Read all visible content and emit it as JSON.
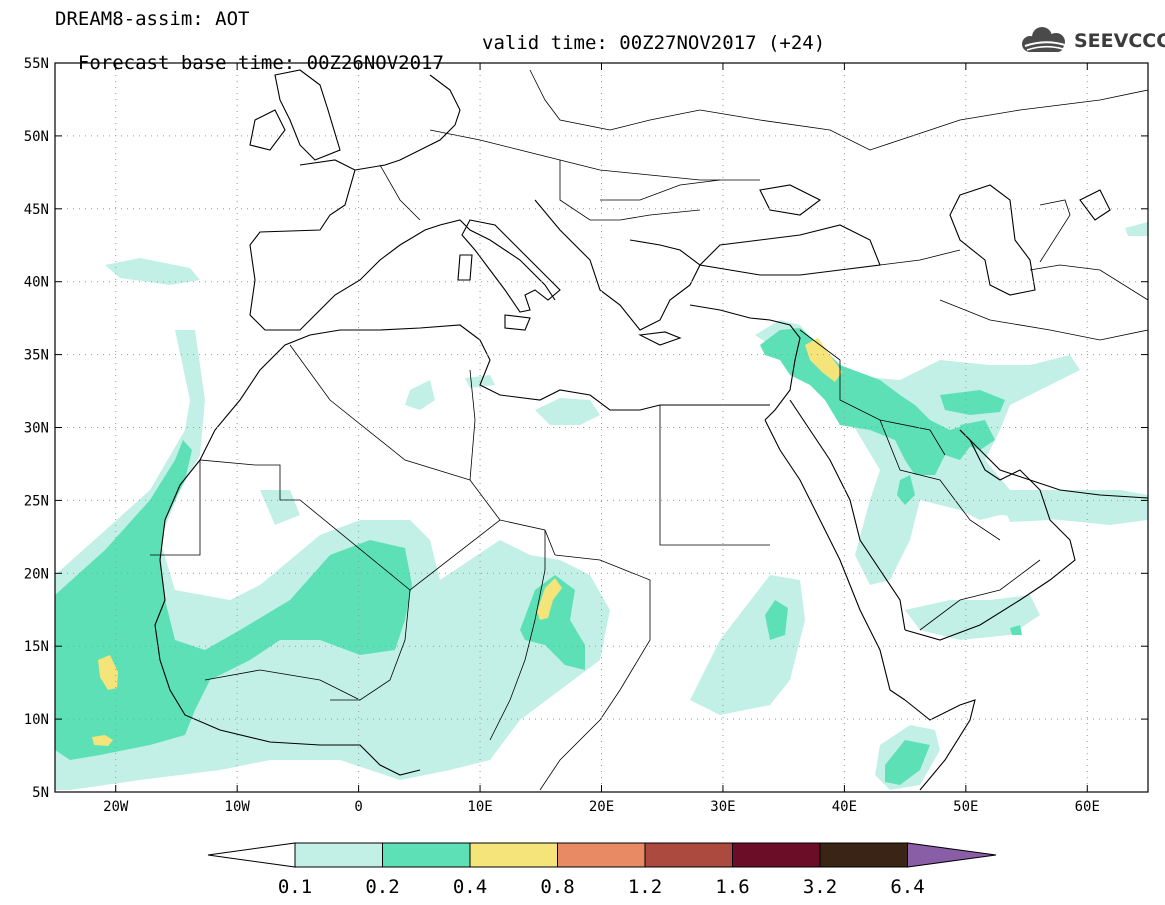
{
  "title": {
    "line1": "DREAM8-assim: AOT",
    "base_time": "Forecast base time: 00Z26NOV2017",
    "valid_time": "valid time: 00Z27NOV2017 (+24)"
  },
  "logo": {
    "text": "SEEVCCC",
    "icon": "cloud-icon"
  },
  "map": {
    "lon_range": [
      -25,
      65
    ],
    "lat_range": [
      5,
      55
    ],
    "lat_ticks": [
      "5N",
      "10N",
      "15N",
      "20N",
      "25N",
      "30N",
      "35N",
      "40N",
      "45N",
      "50N",
      "55N"
    ],
    "lon_ticks": [
      "20W",
      "10W",
      "0",
      "10E",
      "20E",
      "30E",
      "40E",
      "50E",
      "60E"
    ]
  },
  "colorbar": {
    "levels": [
      "0.1",
      "0.2",
      "0.4",
      "0.8",
      "1.2",
      "1.6",
      "3.2",
      "6.4"
    ],
    "colors": {
      "below": "#ffffff",
      "c1": "#c2f0e6",
      "c2": "#5ee0b6",
      "c3": "#f4e47a",
      "c4": "#e88a63",
      "c5": "#ad4a3f",
      "c6": "#6b0d26",
      "c7": "#3a2415",
      "above": "#8a5ea6"
    }
  }
}
